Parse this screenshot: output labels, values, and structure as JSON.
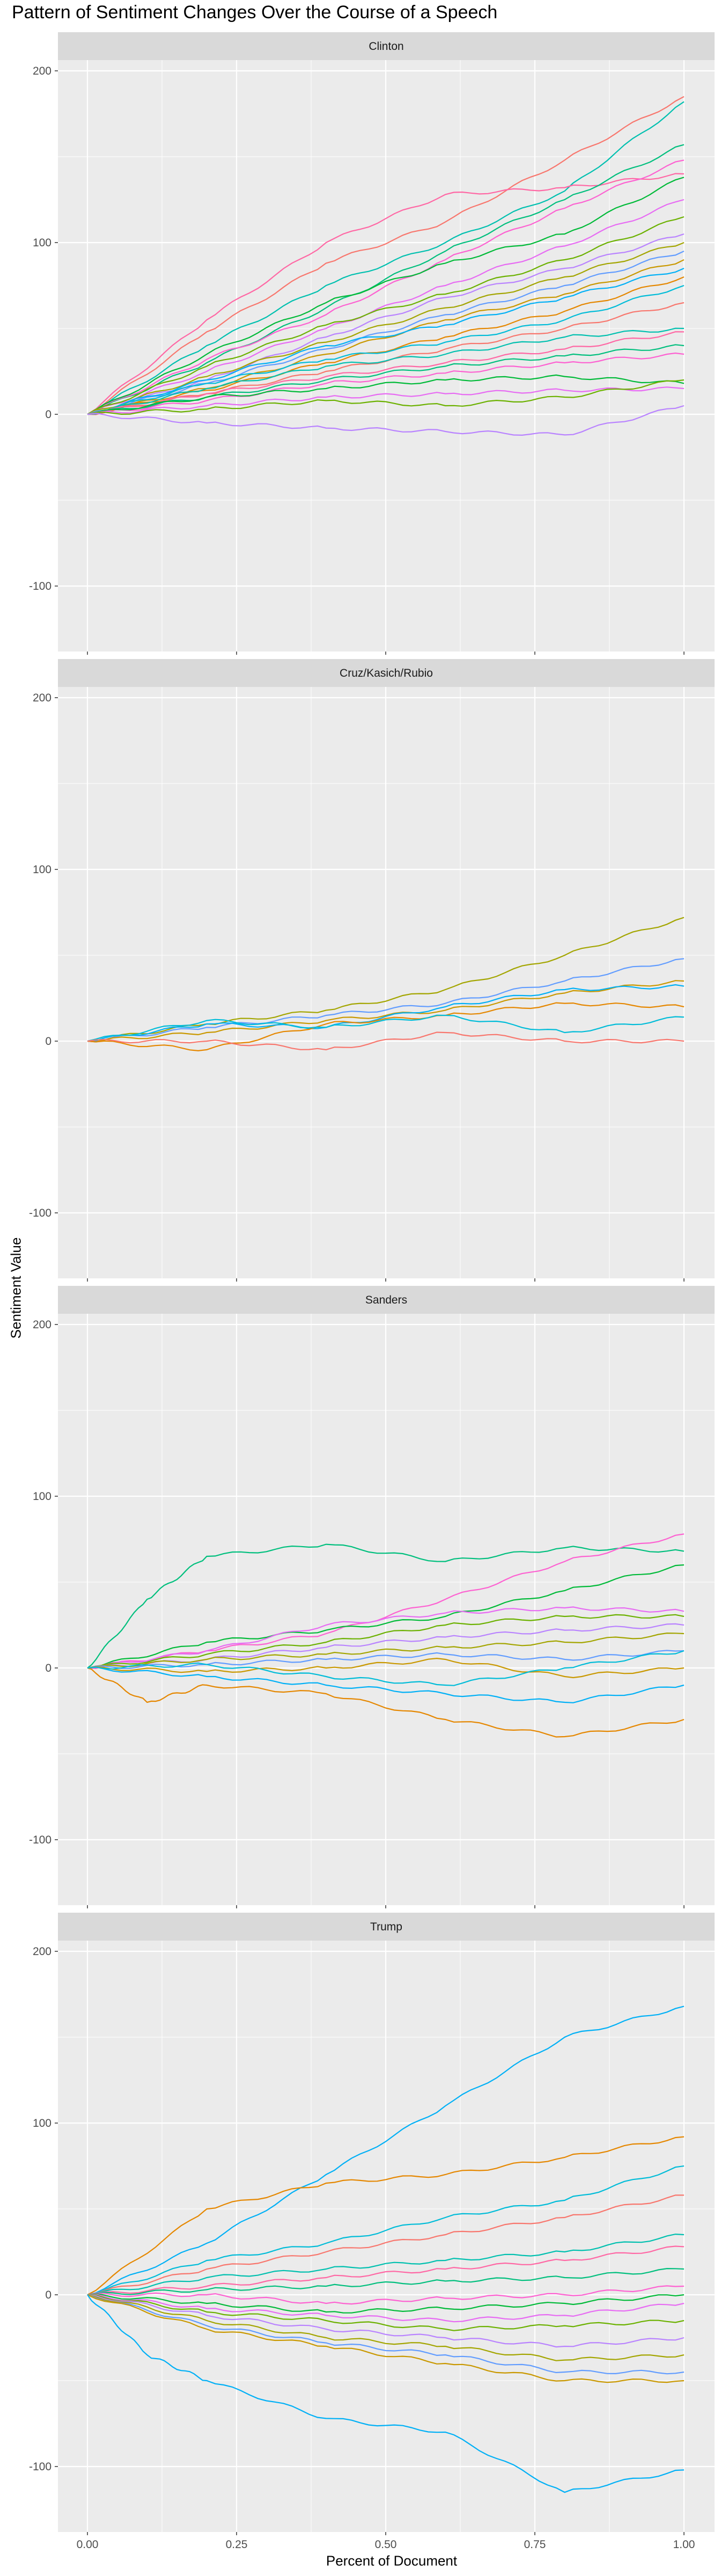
{
  "chart_data": {
    "type": "line",
    "title": "Pattern of Sentiment Changes Over the Course of a Speech",
    "xlabel": "Percent of Document",
    "ylabel": "Sentiment Value",
    "xlim": [
      0,
      1
    ],
    "ylim": [
      -135,
      200
    ],
    "x_ticks": [
      0,
      0.25,
      0.5,
      0.75,
      1
    ],
    "x_tick_labels": [
      "0.00",
      "0.25",
      "0.50",
      "0.75",
      "1.00"
    ],
    "y_ticks": [
      -100,
      0,
      100,
      200
    ],
    "y_tick_labels": [
      "-100",
      "0",
      "100",
      "200"
    ],
    "grid": true,
    "legend": "none",
    "facets": [
      {
        "name": "Clinton",
        "series": [
          {
            "x": [
              0,
              0.2,
              0.4,
              0.6,
              0.8,
              1
            ],
            "y": [
              0,
              48,
              88,
              112,
              148,
              185
            ]
          },
          {
            "x": [
              0,
              0.2,
              0.4,
              0.6,
              0.8,
              1
            ],
            "y": [
              0,
              40,
              75,
              100,
              130,
              182
            ]
          },
          {
            "x": [
              0,
              0.2,
              0.4,
              0.6,
              0.8,
              1
            ],
            "y": [
              0,
              55,
              100,
              128,
              132,
              140
            ]
          },
          {
            "x": [
              0,
              0.2,
              0.4,
              0.6,
              0.8,
              1
            ],
            "y": [
              0,
              30,
              62,
              95,
              125,
              157
            ]
          },
          {
            "x": [
              0,
              0.2,
              0.4,
              0.6,
              0.8,
              1
            ],
            "y": [
              0,
              32,
              58,
              90,
              120,
              148
            ]
          },
          {
            "x": [
              0,
              0.2,
              0.4,
              0.6,
              0.8,
              1
            ],
            "y": [
              0,
              35,
              65,
              88,
              105,
              138
            ]
          },
          {
            "x": [
              0,
              0.2,
              0.4,
              0.6,
              0.8,
              1
            ],
            "y": [
              0,
              25,
              50,
              75,
              98,
              125
            ]
          },
          {
            "x": [
              0,
              0.2,
              0.4,
              0.6,
              0.8,
              1
            ],
            "y": [
              0,
              28,
              52,
              70,
              90,
              115
            ]
          },
          {
            "x": [
              0,
              0.2,
              0.4,
              0.6,
              0.8,
              1
            ],
            "y": [
              0,
              20,
              45,
              68,
              85,
              105
            ]
          },
          {
            "x": [
              0,
              0.2,
              0.4,
              0.6,
              0.8,
              1
            ],
            "y": [
              0,
              22,
              42,
              62,
              80,
              100
            ]
          },
          {
            "x": [
              0,
              0.2,
              0.4,
              0.6,
              0.8,
              1
            ],
            "y": [
              0,
              18,
              38,
              58,
              75,
              95
            ]
          },
          {
            "x": [
              0,
              0.2,
              0.4,
              0.6,
              0.8,
              1
            ],
            "y": [
              0,
              15,
              35,
              55,
              70,
              90
            ]
          },
          {
            "x": [
              0,
              0.2,
              0.4,
              0.6,
              0.8,
              1
            ],
            "y": [
              0,
              20,
              40,
              52,
              68,
              85
            ]
          },
          {
            "x": [
              0,
              0.2,
              0.4,
              0.6,
              0.8,
              1
            ],
            "y": [
              0,
              14,
              30,
              45,
              60,
              80
            ]
          },
          {
            "x": [
              0,
              0.2,
              0.4,
              0.6,
              0.8,
              1
            ],
            "y": [
              0,
              18,
              32,
              42,
              55,
              75
            ]
          },
          {
            "x": [
              0,
              0.2,
              0.4,
              0.6,
              0.8,
              1
            ],
            "y": [
              0,
              12,
              25,
              38,
              50,
              65
            ]
          },
          {
            "x": [
              0,
              0.2,
              0.4,
              0.6,
              0.8,
              1
            ],
            "y": [
              0,
              15,
              28,
              35,
              45,
              50
            ]
          },
          {
            "x": [
              0,
              0.2,
              0.4,
              0.6,
              0.8,
              1
            ],
            "y": [
              0,
              12,
              22,
              30,
              38,
              48
            ]
          },
          {
            "x": [
              0,
              0.2,
              0.4,
              0.6,
              0.8,
              1
            ],
            "y": [
              0,
              10,
              20,
              28,
              34,
              40
            ]
          },
          {
            "x": [
              0,
              0.2,
              0.4,
              0.6,
              0.8,
              1
            ],
            "y": [
              0,
              8,
              18,
              24,
              30,
              35
            ]
          },
          {
            "x": [
              0,
              0.2,
              0.4,
              0.6,
              0.8,
              1
            ],
            "y": [
              0,
              10,
              15,
              20,
              22,
              18
            ]
          },
          {
            "x": [
              0,
              0.2,
              0.4,
              0.6,
              0.8,
              1
            ],
            "y": [
              0,
              5,
              10,
              12,
              14,
              15
            ]
          },
          {
            "x": [
              0,
              0.2,
              0.4,
              0.6,
              0.8,
              1
            ],
            "y": [
              0,
              3,
              8,
              5,
              10,
              20
            ]
          },
          {
            "x": [
              0,
              0.2,
              0.4,
              0.6,
              0.8,
              1
            ],
            "y": [
              0,
              -5,
              -8,
              -10,
              -12,
              5
            ]
          }
        ]
      },
      {
        "name": "Cruz/Kasich/Rubio",
        "series": [
          {
            "x": [
              0,
              0.2,
              0.4,
              0.6,
              0.8,
              1
            ],
            "y": [
              0,
              10,
              18,
              30,
              50,
              72
            ]
          },
          {
            "x": [
              0,
              0.2,
              0.4,
              0.6,
              0.8,
              1
            ],
            "y": [
              0,
              8,
              15,
              22,
              35,
              48
            ]
          },
          {
            "x": [
              0,
              0.2,
              0.4,
              0.6,
              0.8,
              1
            ],
            "y": [
              0,
              5,
              12,
              18,
              28,
              35
            ]
          },
          {
            "x": [
              0,
              0.2,
              0.4,
              0.6,
              0.8,
              1
            ],
            "y": [
              0,
              10,
              8,
              20,
              30,
              32
            ]
          },
          {
            "x": [
              0,
              0.2,
              0.4,
              0.6,
              0.8,
              1
            ],
            "y": [
              0,
              -5,
              10,
              15,
              22,
              20
            ]
          },
          {
            "x": [
              0,
              0.2,
              0.4,
              0.6,
              0.8,
              1
            ],
            "y": [
              0,
              12,
              8,
              15,
              5,
              14
            ]
          },
          {
            "x": [
              0,
              0.2,
              0.4,
              0.6,
              0.8,
              1
            ],
            "y": [
              0,
              0,
              -5,
              5,
              0,
              0
            ]
          }
        ]
      },
      {
        "name": "Sanders",
        "series": [
          {
            "x": [
              0,
              0.1,
              0.2,
              0.4,
              0.6,
              0.8,
              1
            ],
            "y": [
              0,
              40,
              65,
              72,
              62,
              70,
              68
            ]
          },
          {
            "x": [
              0,
              0.2,
              0.4,
              0.6,
              0.8,
              1
            ],
            "y": [
              0,
              10,
              20,
              40,
              62,
              78
            ]
          },
          {
            "x": [
              0,
              0.2,
              0.4,
              0.6,
              0.8,
              1
            ],
            "y": [
              0,
              15,
              22,
              30,
              45,
              60
            ]
          },
          {
            "x": [
              0,
              0.2,
              0.4,
              0.6,
              0.8,
              1
            ],
            "y": [
              0,
              10,
              25,
              32,
              35,
              33
            ]
          },
          {
            "x": [
              0,
              0.2,
              0.4,
              0.6,
              0.8,
              1
            ],
            "y": [
              0,
              8,
              15,
              25,
              30,
              30
            ]
          },
          {
            "x": [
              0,
              0.2,
              0.4,
              0.6,
              0.8,
              1
            ],
            "y": [
              0,
              5,
              12,
              18,
              22,
              25
            ]
          },
          {
            "x": [
              0,
              0.2,
              0.4,
              0.6,
              0.8,
              1
            ],
            "y": [
              0,
              5,
              8,
              12,
              15,
              20
            ]
          },
          {
            "x": [
              0,
              0.2,
              0.4,
              0.6,
              0.8,
              1
            ],
            "y": [
              0,
              2,
              5,
              8,
              5,
              10
            ]
          },
          {
            "x": [
              0,
              0.2,
              0.4,
              0.6,
              0.8,
              1
            ],
            "y": [
              0,
              -2,
              0,
              5,
              -5,
              0
            ]
          },
          {
            "x": [
              0,
              0.2,
              0.4,
              0.6,
              0.8,
              1
            ],
            "y": [
              0,
              -5,
              -10,
              -15,
              -20,
              -10
            ]
          },
          {
            "x": [
              0,
              0.1,
              0.2,
              0.4,
              0.6,
              0.8,
              1
            ],
            "y": [
              0,
              -20,
              -10,
              -15,
              -30,
              -40,
              -30
            ]
          },
          {
            "x": [
              0,
              0.2,
              0.4,
              0.6,
              0.8,
              1
            ],
            "y": [
              0,
              2,
              -5,
              -10,
              0,
              10
            ]
          }
        ]
      },
      {
        "name": "Trump",
        "series": [
          {
            "x": [
              0,
              0.2,
              0.4,
              0.6,
              0.8,
              1
            ],
            "y": [
              0,
              30,
              70,
              110,
              150,
              168
            ]
          },
          {
            "x": [
              0,
              0.2,
              0.4,
              0.6,
              0.8,
              1
            ],
            "y": [
              0,
              50,
              65,
              70,
              80,
              92
            ]
          },
          {
            "x": [
              0,
              0.2,
              0.4,
              0.6,
              0.8,
              1
            ],
            "y": [
              0,
              20,
              30,
              45,
              55,
              75
            ]
          },
          {
            "x": [
              0,
              0.2,
              0.4,
              0.6,
              0.8,
              1
            ],
            "y": [
              0,
              15,
              25,
              35,
              45,
              58
            ]
          },
          {
            "x": [
              0,
              0.2,
              0.4,
              0.6,
              0.8,
              1
            ],
            "y": [
              0,
              10,
              15,
              20,
              25,
              35
            ]
          },
          {
            "x": [
              0,
              0.2,
              0.4,
              0.6,
              0.8,
              1
            ],
            "y": [
              0,
              5,
              10,
              15,
              20,
              28
            ]
          },
          {
            "x": [
              0,
              0.2,
              0.4,
              0.6,
              0.8,
              1
            ],
            "y": [
              0,
              3,
              5,
              8,
              10,
              15
            ]
          },
          {
            "x": [
              0,
              0.2,
              0.4,
              0.6,
              0.8,
              1
            ],
            "y": [
              0,
              0,
              -5,
              -2,
              0,
              5
            ]
          },
          {
            "x": [
              0,
              0.2,
              0.4,
              0.6,
              0.8,
              1
            ],
            "y": [
              0,
              -5,
              -10,
              -8,
              -5,
              0
            ]
          },
          {
            "x": [
              0,
              0.2,
              0.4,
              0.6,
              0.8,
              1
            ],
            "y": [
              0,
              -8,
              -12,
              -15,
              -12,
              -5
            ]
          },
          {
            "x": [
              0,
              0.2,
              0.4,
              0.6,
              0.8,
              1
            ],
            "y": [
              0,
              -10,
              -15,
              -20,
              -18,
              -15
            ]
          },
          {
            "x": [
              0,
              0.2,
              0.4,
              0.6,
              0.8,
              1
            ],
            "y": [
              0,
              -12,
              -20,
              -25,
              -30,
              -25
            ]
          },
          {
            "x": [
              0,
              0.2,
              0.4,
              0.6,
              0.8,
              1
            ],
            "y": [
              0,
              -15,
              -25,
              -30,
              -38,
              -35
            ]
          },
          {
            "x": [
              0,
              0.2,
              0.4,
              0.6,
              0.8,
              1
            ],
            "y": [
              0,
              -18,
              -28,
              -35,
              -45,
              -45
            ]
          },
          {
            "x": [
              0,
              0.2,
              0.4,
              0.6,
              0.8,
              1
            ],
            "y": [
              0,
              -20,
              -30,
              -40,
              -50,
              -50
            ]
          },
          {
            "x": [
              0,
              0.1,
              0.2,
              0.4,
              0.6,
              0.8,
              1
            ],
            "y": [
              0,
              -35,
              -50,
              -72,
              -80,
              -115,
              -102
            ]
          }
        ]
      }
    ]
  },
  "colors": {
    "panel_bg": "#ebebeb",
    "strip_bg": "#d9d9d9",
    "grid": "#ffffff",
    "palette": [
      "#f8766d",
      "#e58700",
      "#c99800",
      "#a3a500",
      "#6bb100",
      "#00ba38",
      "#00bf7d",
      "#00c0af",
      "#00bcd8",
      "#00b0f6",
      "#619cff",
      "#b983ff",
      "#e76bf3",
      "#fd61d1",
      "#ff67a4"
    ]
  }
}
